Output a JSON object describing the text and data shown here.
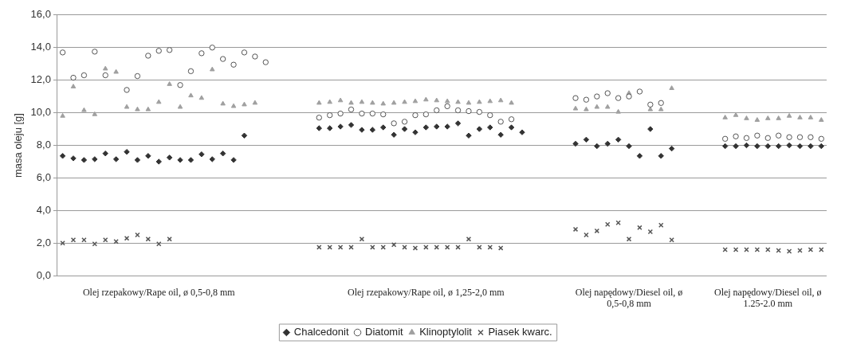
{
  "chart_data": {
    "type": "scatter",
    "ylabel": "masa oleju [g]",
    "categories": [
      null,
      null,
      null,
      null,
      null,
      null,
      null,
      null,
      null,
      "Olej rzepakowy/Rape oil, ø 0,5-0,8 mm",
      null,
      null,
      null,
      null,
      null,
      null,
      null,
      null,
      null,
      null,
      null,
      null,
      null,
      null,
      null,
      null,
      null,
      null,
      null,
      null,
      null,
      null,
      null,
      null,
      "Olej rzepakowy/Rape oil, ø 1,25-2,0 mm",
      null,
      null,
      null,
      null,
      null,
      null,
      null,
      null,
      null,
      null,
      null,
      null,
      null,
      null,
      null,
      null,
      null,
      null,
      "Olej napędowy/Diesel oil, ø 0,5-0,8 mm",
      null,
      null,
      null,
      null,
      null,
      null,
      null,
      null,
      null,
      null,
      null,
      null,
      "Olej napędowy/Diesel oil, ø 1.25-2.0 mm",
      null,
      null,
      null,
      null,
      null
    ],
    "series": [
      {
        "name": "Chalcedonit",
        "color": "#333333",
        "marker": "diamond",
        "values": [
          7.35,
          7.2,
          7.1,
          7.15,
          7.5,
          7.15,
          7.6,
          7.1,
          7.35,
          7.0,
          7.25,
          7.1,
          7.1,
          7.45,
          7.15,
          7.5,
          7.1,
          8.6,
          null,
          null,
          null,
          null,
          null,
          null,
          9.05,
          9.05,
          9.15,
          9.25,
          8.95,
          8.95,
          9.1,
          8.65,
          9.0,
          8.8,
          9.1,
          9.15,
          9.15,
          9.35,
          8.6,
          9.0,
          9.1,
          8.65,
          9.1,
          8.8,
          null,
          null,
          null,
          null,
          8.1,
          8.35,
          7.95,
          8.1,
          8.35,
          7.95,
          7.35,
          9.0,
          7.35,
          7.8,
          null,
          null,
          null,
          null,
          7.95,
          7.95,
          8.0,
          7.95,
          7.95,
          7.95,
          8.0,
          7.95,
          7.95,
          7.95
        ]
      },
      {
        "name": "Diatomit",
        "color": "#555555",
        "marker": "circle",
        "values": [
          13.7,
          12.15,
          12.3,
          13.75,
          12.3,
          null,
          11.4,
          12.25,
          13.5,
          13.8,
          13.85,
          11.7,
          12.55,
          13.65,
          14.0,
          13.3,
          12.95,
          13.7,
          13.45,
          13.1,
          null,
          null,
          null,
          null,
          9.7,
          9.85,
          9.95,
          10.2,
          9.95,
          9.95,
          9.9,
          9.35,
          9.45,
          9.85,
          9.9,
          10.15,
          10.4,
          10.15,
          10.1,
          10.05,
          9.85,
          9.45,
          9.6,
          null,
          null,
          null,
          null,
          null,
          10.9,
          10.8,
          11.0,
          11.2,
          10.9,
          11.0,
          11.3,
          10.5,
          10.6,
          null,
          null,
          null,
          null,
          null,
          8.4,
          8.55,
          8.45,
          8.6,
          8.45,
          8.6,
          8.5,
          8.5,
          8.5,
          8.4
        ]
      },
      {
        "name": "Klinoptylolit",
        "color": "#a0a0a0",
        "marker": "triangle",
        "values": [
          9.8,
          11.6,
          10.15,
          9.9,
          12.7,
          12.5,
          10.35,
          10.2,
          10.2,
          10.65,
          11.75,
          10.35,
          11.05,
          10.9,
          12.65,
          10.55,
          10.4,
          10.5,
          10.6,
          null,
          null,
          null,
          null,
          null,
          10.6,
          10.65,
          10.75,
          10.6,
          10.65,
          10.6,
          10.55,
          10.6,
          10.65,
          10.7,
          10.8,
          10.75,
          10.7,
          10.65,
          10.6,
          10.65,
          10.7,
          10.75,
          10.6,
          null,
          null,
          null,
          null,
          null,
          10.25,
          10.2,
          10.35,
          10.35,
          10.05,
          11.2,
          null,
          10.2,
          10.2,
          11.5,
          null,
          null,
          null,
          null,
          9.7,
          9.85,
          9.65,
          9.55,
          9.65,
          9.65,
          9.8,
          9.7,
          9.7,
          9.55
        ]
      },
      {
        "name": "Piasek kwarc.",
        "color": "#555555",
        "marker": "cross",
        "values": [
          2.0,
          2.2,
          2.2,
          1.95,
          2.2,
          2.1,
          2.3,
          2.5,
          2.25,
          1.95,
          2.25,
          null,
          null,
          null,
          null,
          null,
          null,
          null,
          null,
          null,
          null,
          null,
          null,
          null,
          1.75,
          1.75,
          1.75,
          1.75,
          2.25,
          1.75,
          1.75,
          1.9,
          1.75,
          1.7,
          1.75,
          1.75,
          1.75,
          1.75,
          2.25,
          1.75,
          1.75,
          1.7,
          null,
          null,
          null,
          null,
          null,
          null,
          2.85,
          2.5,
          2.75,
          3.15,
          3.25,
          2.25,
          2.95,
          2.7,
          3.1,
          2.2,
          null,
          null,
          null,
          null,
          1.6,
          1.6,
          1.6,
          1.6,
          1.6,
          1.55,
          1.5,
          1.55,
          1.6,
          1.6
        ]
      }
    ],
    "ylim": [
      0,
      16
    ],
    "yticks": [
      {
        "value": 0,
        "label": "0,0"
      },
      {
        "value": 2,
        "label": "2,0"
      },
      {
        "value": 4,
        "label": "4,0"
      },
      {
        "value": 6,
        "label": "6,0"
      },
      {
        "value": 8,
        "label": "8,0"
      },
      {
        "value": 10,
        "label": "10,0"
      },
      {
        "value": 12,
        "label": "12,0"
      },
      {
        "value": 14,
        "label": "14,0"
      },
      {
        "value": 16,
        "label": "16,0"
      }
    ],
    "grid": "y",
    "legend": "bottom"
  }
}
